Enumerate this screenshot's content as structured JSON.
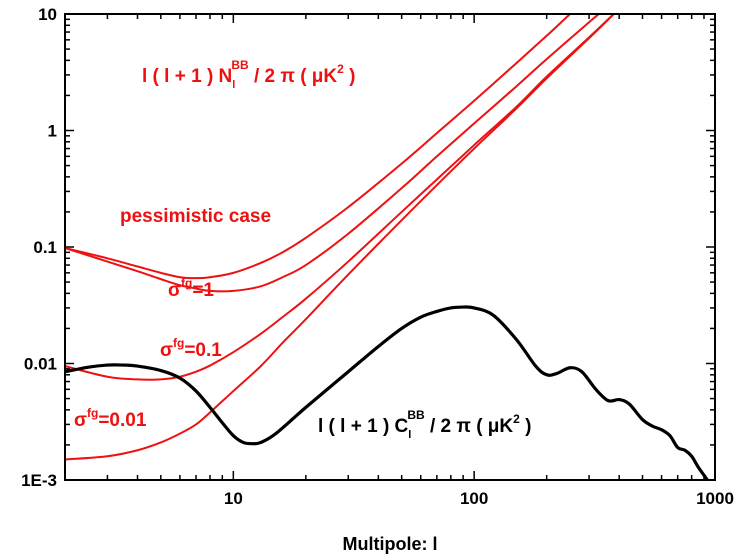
{
  "chart_data": {
    "type": "line",
    "xscale": "log",
    "yscale": "log",
    "xlim": [
      2,
      1000
    ],
    "ylim": [
      0.001,
      10
    ],
    "xlabel": "Multipole: l",
    "x_tick_labels": [
      "10",
      "100",
      "1000"
    ],
    "y_tick_labels": [
      "1E-3",
      "0.01",
      "0.1",
      "1",
      "10"
    ],
    "annotations": {
      "noise_label": {
        "pre": "l ( l + 1 ) N",
        "sub": "l",
        "sup": "BB",
        "post": " / 2 π ( μK",
        "sup2": "2",
        "end": " )"
      },
      "signal_label": {
        "pre": "l ( l + 1 ) C",
        "sub": "l",
        "sup": "BB",
        "post": " / 2 π ( μK",
        "sup2": "2",
        "end": " )"
      },
      "pessimistic": "pessimistic case",
      "sigma_1": {
        "sym": "σ",
        "sup": "fg",
        "val": "=1"
      },
      "sigma_01": {
        "sym": "σ",
        "sup": "fg",
        "val": "=0.1"
      },
      "sigma_001": {
        "sym": "σ",
        "sup": "fg",
        "val": "=0.01"
      }
    },
    "series": [
      {
        "color": "#ee1111",
        "points": [
          [
            2,
            0.098
          ],
          [
            3,
            0.08
          ],
          [
            4,
            0.068
          ],
          [
            5,
            0.06
          ],
          [
            6,
            0.055
          ],
          [
            7,
            0.054
          ],
          [
            8,
            0.055
          ],
          [
            10,
            0.06
          ],
          [
            13,
            0.073
          ],
          [
            16,
            0.09
          ],
          [
            20,
            0.12
          ],
          [
            30,
            0.22
          ],
          [
            50,
            0.52
          ],
          [
            70,
            0.95
          ],
          [
            100,
            1.8
          ],
          [
            150,
            3.8
          ],
          [
            200,
            6.5
          ],
          [
            250,
            10
          ]
        ]
      },
      {
        "color": "#ee1111",
        "points": [
          [
            2,
            0.098
          ],
          [
            3,
            0.075
          ],
          [
            4,
            0.062
          ],
          [
            5,
            0.053
          ],
          [
            6,
            0.047
          ],
          [
            7,
            0.044
          ],
          [
            8,
            0.042
          ],
          [
            10,
            0.042
          ],
          [
            13,
            0.046
          ],
          [
            16,
            0.055
          ],
          [
            20,
            0.07
          ],
          [
            30,
            0.13
          ],
          [
            50,
            0.32
          ],
          [
            70,
            0.6
          ],
          [
            100,
            1.15
          ],
          [
            150,
            2.4
          ],
          [
            200,
            4.1
          ],
          [
            300,
            8.5
          ],
          [
            330,
            10
          ]
        ]
      },
      {
        "color": "#ee1111",
        "points": [
          [
            2,
            0.0095
          ],
          [
            3,
            0.0077
          ],
          [
            4,
            0.0073
          ],
          [
            5,
            0.0073
          ],
          [
            6,
            0.0077
          ],
          [
            7,
            0.0085
          ],
          [
            8,
            0.0096
          ],
          [
            10,
            0.0125
          ],
          [
            13,
            0.018
          ],
          [
            16,
            0.025
          ],
          [
            20,
            0.036
          ],
          [
            30,
            0.075
          ],
          [
            50,
            0.2
          ],
          [
            70,
            0.38
          ],
          [
            100,
            0.75
          ],
          [
            150,
            1.6
          ],
          [
            200,
            2.9
          ],
          [
            300,
            6.3
          ],
          [
            380,
            10
          ]
        ]
      },
      {
        "color": "#ee1111",
        "points": [
          [
            2,
            0.0015
          ],
          [
            3,
            0.0016
          ],
          [
            4,
            0.0018
          ],
          [
            5,
            0.0021
          ],
          [
            6,
            0.0025
          ],
          [
            7,
            0.003
          ],
          [
            8,
            0.0038
          ],
          [
            10,
            0.0058
          ],
          [
            13,
            0.0095
          ],
          [
            16,
            0.015
          ],
          [
            20,
            0.024
          ],
          [
            30,
            0.058
          ],
          [
            50,
            0.17
          ],
          [
            70,
            0.34
          ],
          [
            100,
            0.7
          ],
          [
            150,
            1.55
          ],
          [
            200,
            2.8
          ],
          [
            300,
            6.2
          ],
          [
            380,
            10
          ]
        ]
      },
      {
        "color": "#000000",
        "points": [
          [
            2,
            0.0085
          ],
          [
            2.5,
            0.0093
          ],
          [
            3,
            0.0097
          ],
          [
            3.5,
            0.0097
          ],
          [
            4,
            0.0095
          ],
          [
            5,
            0.0087
          ],
          [
            6,
            0.0075
          ],
          [
            7,
            0.0058
          ],
          [
            8,
            0.0042
          ],
          [
            9,
            0.0031
          ],
          [
            10,
            0.0024
          ],
          [
            11,
            0.0021
          ],
          [
            12,
            0.00205
          ],
          [
            13,
            0.0021
          ],
          [
            15,
            0.0025
          ],
          [
            20,
            0.0042
          ],
          [
            30,
            0.0085
          ],
          [
            40,
            0.014
          ],
          [
            50,
            0.02
          ],
          [
            60,
            0.025
          ],
          [
            70,
            0.028
          ],
          [
            80,
            0.03
          ],
          [
            90,
            0.0305
          ],
          [
            100,
            0.03
          ],
          [
            120,
            0.026
          ],
          [
            150,
            0.016
          ],
          [
            180,
            0.0095
          ],
          [
            200,
            0.008
          ],
          [
            220,
            0.0082
          ],
          [
            250,
            0.0092
          ],
          [
            280,
            0.0085
          ],
          [
            320,
            0.006
          ],
          [
            360,
            0.0048
          ],
          [
            400,
            0.0049
          ],
          [
            440,
            0.0045
          ],
          [
            500,
            0.0033
          ],
          [
            550,
            0.0029
          ],
          [
            600,
            0.0027
          ],
          [
            650,
            0.0024
          ],
          [
            700,
            0.0019
          ],
          [
            750,
            0.0018
          ],
          [
            800,
            0.0016
          ],
          [
            850,
            0.0013
          ],
          [
            900,
            0.0011
          ],
          [
            930,
            0.001
          ]
        ]
      }
    ]
  }
}
